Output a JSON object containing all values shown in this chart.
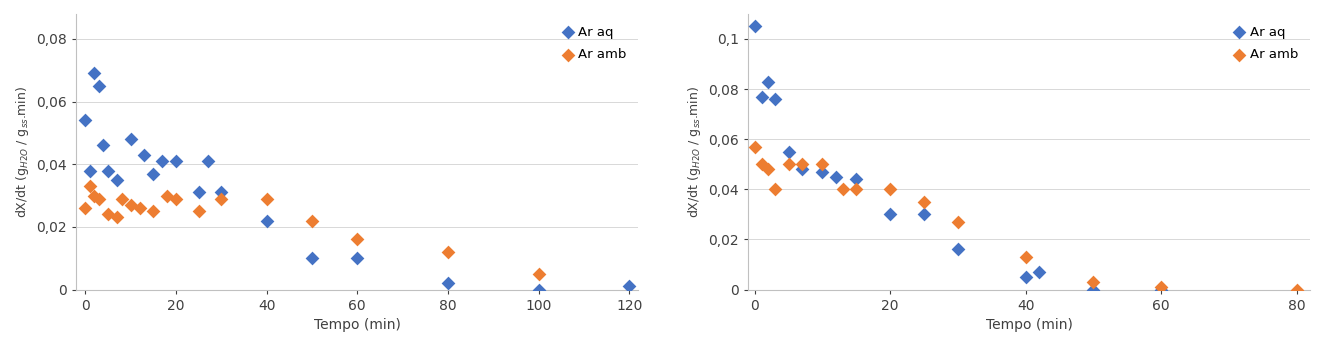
{
  "left": {
    "ar_aq_x": [
      0,
      1,
      2,
      3,
      4,
      5,
      7,
      10,
      13,
      15,
      17,
      20,
      25,
      27,
      30,
      40,
      50,
      60,
      80,
      100,
      120
    ],
    "ar_aq_y": [
      0.054,
      0.038,
      0.069,
      0.065,
      0.046,
      0.038,
      0.035,
      0.048,
      0.043,
      0.037,
      0.041,
      0.041,
      0.031,
      0.041,
      0.031,
      0.022,
      0.01,
      0.01,
      0.002,
      0.0,
      0.001
    ],
    "ar_amb_x": [
      0,
      1,
      2,
      3,
      5,
      7,
      8,
      10,
      12,
      15,
      18,
      20,
      25,
      30,
      40,
      50,
      60,
      80,
      100
    ],
    "ar_amb_y": [
      0.026,
      0.033,
      0.03,
      0.029,
      0.024,
      0.023,
      0.029,
      0.027,
      0.026,
      0.025,
      0.03,
      0.029,
      0.025,
      0.029,
      0.029,
      0.022,
      0.016,
      0.012,
      0.005
    ],
    "xlim": [
      -2,
      122
    ],
    "ylim": [
      0,
      0.088
    ],
    "yticks": [
      0,
      0.02,
      0.04,
      0.06,
      0.08
    ],
    "ytick_labels": [
      "0",
      "0,02",
      "0,04",
      "0,06",
      "0,08"
    ],
    "xticks": [
      0,
      20,
      40,
      60,
      80,
      100,
      120
    ],
    "xtick_labels": [
      "0",
      "20",
      "40",
      "60",
      "80",
      "100",
      "120"
    ],
    "xlabel": "Tempo (min)"
  },
  "right": {
    "ar_aq_x": [
      0,
      1,
      2,
      3,
      5,
      7,
      10,
      12,
      15,
      20,
      25,
      30,
      40,
      42,
      50,
      60
    ],
    "ar_aq_y": [
      0.105,
      0.077,
      0.083,
      0.076,
      0.055,
      0.048,
      0.047,
      0.045,
      0.044,
      0.03,
      0.03,
      0.016,
      0.005,
      0.007,
      0.0,
      0.0
    ],
    "ar_amb_x": [
      0,
      1,
      2,
      3,
      5,
      7,
      10,
      13,
      15,
      20,
      25,
      30,
      40,
      50,
      60,
      80
    ],
    "ar_amb_y": [
      0.057,
      0.05,
      0.048,
      0.04,
      0.05,
      0.05,
      0.05,
      0.04,
      0.04,
      0.04,
      0.035,
      0.027,
      0.013,
      0.003,
      0.001,
      0.0
    ],
    "xlim": [
      -1,
      82
    ],
    "ylim": [
      0,
      0.11
    ],
    "yticks": [
      0,
      0.02,
      0.04,
      0.06,
      0.08,
      0.1
    ],
    "ytick_labels": [
      "0",
      "0,02",
      "0,04",
      "0,06",
      "0,08",
      "0,1"
    ],
    "xticks": [
      0,
      20,
      40,
      60,
      80
    ],
    "xtick_labels": [
      "0",
      "20",
      "40",
      "60",
      "80"
    ],
    "xlabel": "Tempo (min)"
  },
  "blue_color": "#4472C4",
  "orange_color": "#ED7D31",
  "marker": "D",
  "marker_size": 7,
  "legend_ar_aq": "Ar aq",
  "legend_ar_amb": "Ar amb",
  "background_color": "#ffffff",
  "spine_color": "#c0c0c0",
  "grid_color": "#d8d8d8",
  "ylabel": "dX/dt (g$_{H2O}$ / g$_{ss}$.min)"
}
